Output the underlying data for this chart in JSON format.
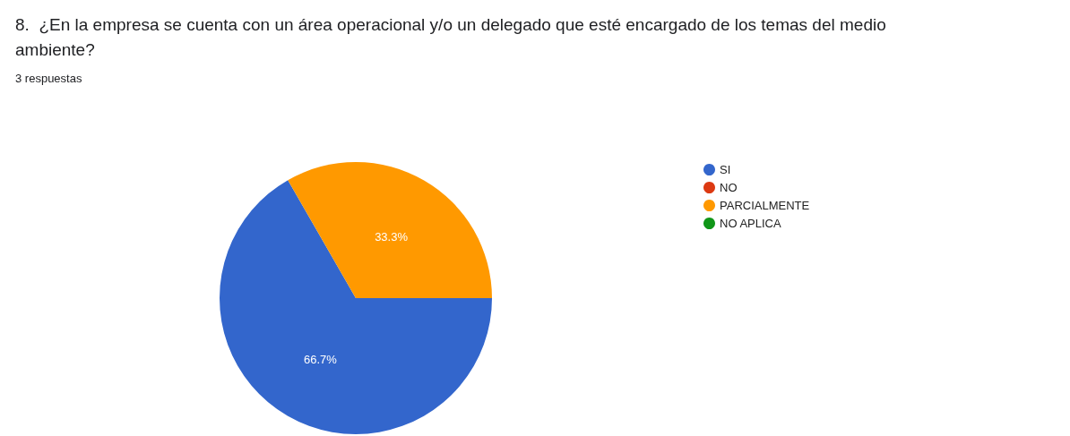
{
  "chart_data": {
    "type": "pie",
    "title": "8.  ¿En la empresa se cuenta con un área operacional y/o un delegado que esté encargado de los temas del medio ambiente?",
    "subtitle": "3 respuestas",
    "categories": [
      "SI",
      "NO",
      "PARCIALMENTE",
      "NO APLICA"
    ],
    "values": [
      66.7,
      0,
      33.3,
      0
    ],
    "colors": [
      "#3366cc",
      "#dc3912",
      "#ff9900",
      "#109618"
    ],
    "value_labels": [
      "66.7%",
      null,
      "33.3%",
      null
    ],
    "legend": "top right"
  }
}
